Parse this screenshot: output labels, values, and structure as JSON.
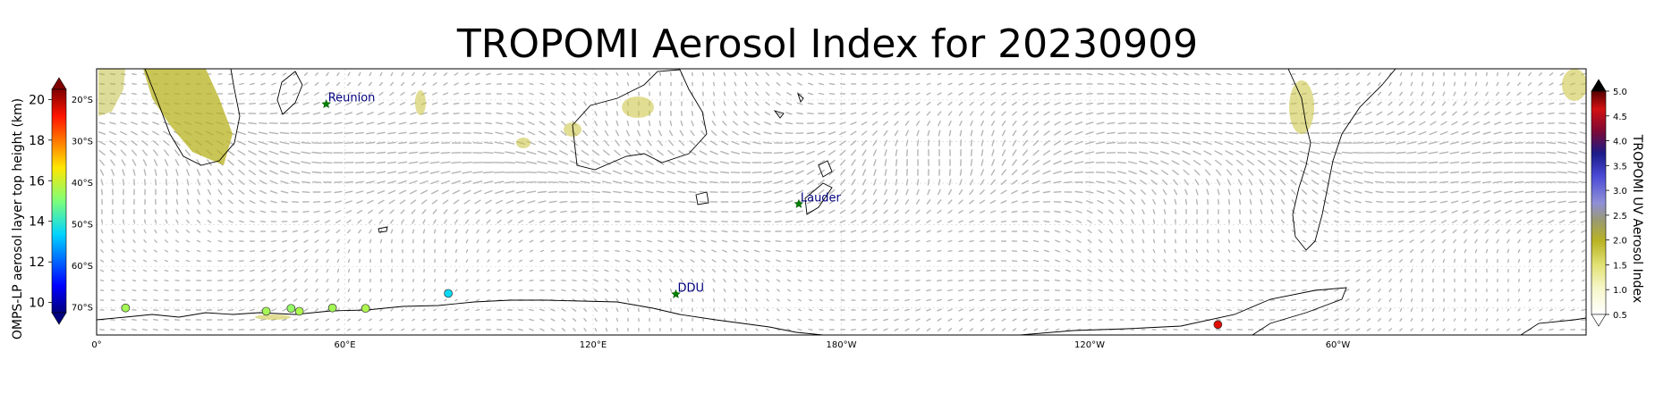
{
  "title": "TROPOMI Aerosol Index for 20230909",
  "left_colorbar": {
    "label": "OMPS-LP aerosol layer top height (km)",
    "ticks": [
      "10",
      "12",
      "14",
      "16",
      "18",
      "20"
    ],
    "range": [
      9.5,
      20.5
    ]
  },
  "right_colorbar": {
    "label": "TROPOMI UV Aerosol Index",
    "ticks": [
      "0.5",
      "1.0",
      "1.5",
      "2.0",
      "2.5",
      "3.0",
      "3.5",
      "4.0",
      "4.5",
      "5.0"
    ],
    "range": [
      0.5,
      5.0
    ]
  },
  "lat_labels": [
    "20°S",
    "30°S",
    "40°S",
    "50°S",
    "60°S",
    "70°S"
  ],
  "lon_labels": [
    "0°",
    "60°E",
    "120°E",
    "180°W",
    "120°W",
    "60°W"
  ],
  "stations": [
    {
      "name": "Reunion",
      "lon": 55.5,
      "lat": -21.0
    },
    {
      "name": "Lauder",
      "lon": 169.7,
      "lat": -45.0
    },
    {
      "name": "DDU",
      "lon": 140.0,
      "lat": -66.7
    }
  ],
  "omps_points": [
    {
      "lon": 7,
      "lat": -70.0,
      "height": 15.5
    },
    {
      "lon": 41,
      "lat": -70.8,
      "height": 15.5
    },
    {
      "lon": 47,
      "lat": -70.1,
      "height": 15.3
    },
    {
      "lon": 49,
      "lat": -70.8,
      "height": 15.6
    },
    {
      "lon": 57,
      "lat": -70.0,
      "height": 15.5
    },
    {
      "lon": 65,
      "lat": -70.1,
      "height": 15.6
    },
    {
      "lon": 85,
      "lat": -66.5,
      "height": 13.5
    },
    {
      "lon": 271,
      "lat": -74.0,
      "height": 19.5
    }
  ],
  "colors": {
    "station_star": "#008000",
    "station_label": "#000080",
    "coast": "#000000",
    "wind": "#b5b5b5"
  }
}
